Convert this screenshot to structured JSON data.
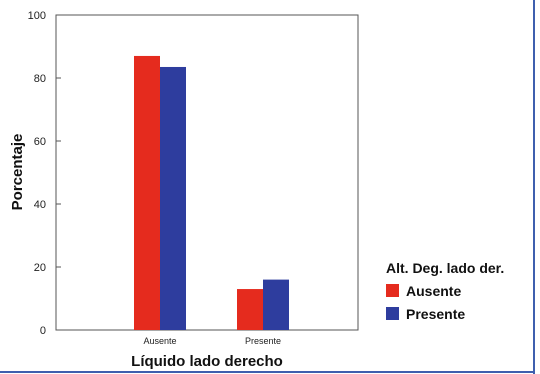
{
  "chart_data": {
    "type": "bar",
    "categories": [
      "Ausente",
      "Presente"
    ],
    "series": [
      {
        "name": "Ausente",
        "color": "#e52b1e",
        "values": [
          87,
          13
        ]
      },
      {
        "name": "Presente",
        "color": "#2e3d9e",
        "values": [
          83.5,
          16
        ]
      }
    ],
    "title": "",
    "xlabel": "Líquido lado derecho",
    "ylabel": "Porcentaje",
    "ylim": [
      0,
      100
    ],
    "yticks": [
      0,
      20,
      40,
      60,
      80,
      100
    ],
    "grid": false,
    "legend": {
      "title": "Alt. Deg. lado der.",
      "placement": "right"
    }
  },
  "colors": {
    "frame_right_line": "#3f5fae",
    "frame_bottom_line": "#3f5fae"
  }
}
